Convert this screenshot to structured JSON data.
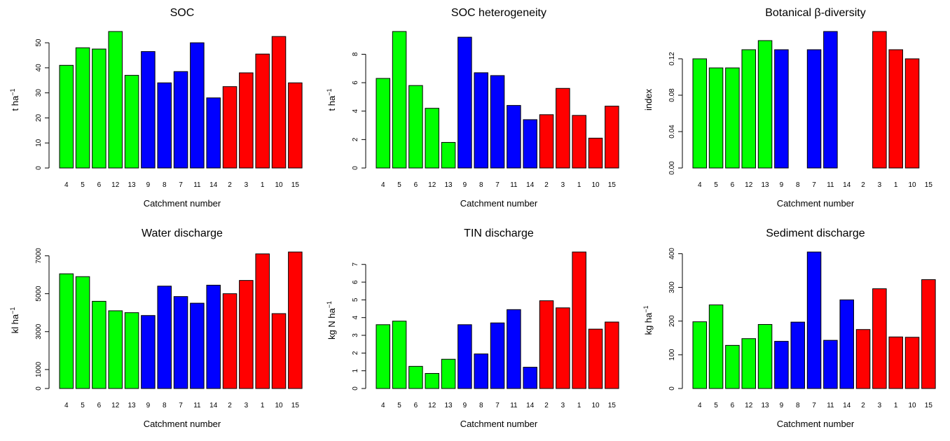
{
  "colors": {
    "group1": "#00ff00",
    "group2": "#0000ff",
    "group3": "#ff0000"
  },
  "chart_data": [
    {
      "type": "bar",
      "title": "SOC",
      "xlabel": "Catchment number",
      "ylabel": "t ha",
      "ylabel_sup": "−1",
      "categories": [
        "4",
        "5",
        "6",
        "12",
        "13",
        "9",
        "8",
        "7",
        "11",
        "14",
        "2",
        "3",
        "1",
        "10",
        "15"
      ],
      "values": [
        41,
        48,
        47.5,
        54.5,
        37,
        46.5,
        34,
        38.5,
        50,
        28,
        32.5,
        38,
        45.5,
        52.5,
        34
      ],
      "bar_groups": [
        "group1",
        "group1",
        "group1",
        "group1",
        "group1",
        "group2",
        "group2",
        "group2",
        "group2",
        "group2",
        "group3",
        "group3",
        "group3",
        "group3",
        "group3"
      ],
      "ylim": [
        0,
        54.5
      ],
      "yticks": [
        0,
        10,
        20,
        30,
        40,
        50
      ],
      "ytick_labels": [
        "0",
        "10",
        "20",
        "30",
        "40",
        "50"
      ]
    },
    {
      "type": "bar",
      "title": "SOC heterogeneity",
      "xlabel": "Catchment number",
      "ylabel": "t ha",
      "ylabel_sup": "−1",
      "categories": [
        "4",
        "5",
        "6",
        "12",
        "13",
        "9",
        "8",
        "7",
        "11",
        "14",
        "2",
        "3",
        "1",
        "10",
        "15"
      ],
      "values": [
        6.3,
        9.6,
        5.8,
        4.2,
        1.8,
        9.2,
        6.7,
        6.5,
        4.4,
        3.4,
        3.75,
        5.6,
        3.7,
        2.1,
        4.35
      ],
      "bar_groups": [
        "group1",
        "group1",
        "group1",
        "group1",
        "group1",
        "group2",
        "group2",
        "group2",
        "group2",
        "group2",
        "group3",
        "group3",
        "group3",
        "group3",
        "group3"
      ],
      "ylim": [
        0,
        9.6
      ],
      "yticks": [
        0,
        2,
        4,
        6,
        8
      ],
      "ytick_labels": [
        "0",
        "2",
        "4",
        "6",
        "8"
      ]
    },
    {
      "type": "bar",
      "title": "Botanical β-diversity",
      "xlabel": "Catchment number",
      "ylabel": "index",
      "ylabel_sup": "",
      "categories": [
        "4",
        "5",
        "6",
        "12",
        "13",
        "9",
        "8",
        "7",
        "11",
        "14",
        "2",
        "3",
        "1",
        "10",
        "15"
      ],
      "values": [
        0.12,
        0.11,
        0.11,
        0.13,
        0.14,
        0.13,
        null,
        0.13,
        0.15,
        null,
        null,
        0.15,
        0.13,
        0.12,
        null
      ],
      "bar_groups": [
        "group1",
        "group1",
        "group1",
        "group1",
        "group1",
        "group2",
        "group2",
        "group2",
        "group2",
        "group2",
        "group3",
        "group3",
        "group3",
        "group3",
        "group3"
      ],
      "ylim": [
        0,
        0.15
      ],
      "yticks": [
        0,
        0.04,
        0.08,
        0.12
      ],
      "ytick_labels": [
        "0.00",
        "0.04",
        "0.08",
        "0.12"
      ]
    },
    {
      "type": "bar",
      "title": "Water discharge",
      "xlabel": "Catchment number",
      "ylabel": "kl ha",
      "ylabel_sup": "−1",
      "categories": [
        "4",
        "5",
        "6",
        "12",
        "13",
        "9",
        "8",
        "7",
        "11",
        "14",
        "2",
        "3",
        "1",
        "10",
        "15"
      ],
      "values": [
        6050,
        5900,
        4600,
        4100,
        4000,
        3850,
        5400,
        4850,
        4500,
        5450,
        5000,
        5700,
        7100,
        3950,
        7200
      ],
      "bar_groups": [
        "group1",
        "group1",
        "group1",
        "group1",
        "group1",
        "group2",
        "group2",
        "group2",
        "group2",
        "group2",
        "group3",
        "group3",
        "group3",
        "group3",
        "group3"
      ],
      "ylim": [
        0,
        7200
      ],
      "yticks": [
        0,
        1000,
        3000,
        5000,
        7000
      ],
      "ytick_labels": [
        "0",
        "1000",
        "3000",
        "5000",
        "7000"
      ]
    },
    {
      "type": "bar",
      "title": "TIN discharge",
      "xlabel": "Catchment number",
      "ylabel": "kg N ha",
      "ylabel_sup": "−1",
      "categories": [
        "4",
        "5",
        "6",
        "12",
        "13",
        "9",
        "8",
        "7",
        "11",
        "14",
        "2",
        "3",
        "1",
        "10",
        "15"
      ],
      "values": [
        3.6,
        3.8,
        1.25,
        0.85,
        1.65,
        3.6,
        1.95,
        3.7,
        4.45,
        1.2,
        4.95,
        4.55,
        7.7,
        3.35,
        3.75
      ],
      "bar_groups": [
        "group1",
        "group1",
        "group1",
        "group1",
        "group1",
        "group2",
        "group2",
        "group2",
        "group2",
        "group2",
        "group3",
        "group3",
        "group3",
        "group3",
        "group3"
      ],
      "ylim": [
        0,
        7.7
      ],
      "yticks": [
        0,
        1,
        2,
        3,
        4,
        5,
        6,
        7
      ],
      "ytick_labels": [
        "0",
        "1",
        "2",
        "3",
        "4",
        "5",
        "6",
        "7"
      ]
    },
    {
      "type": "bar",
      "title": "Sediment discharge",
      "xlabel": "Catchment number",
      "ylabel": "kg ha",
      "ylabel_sup": "−1",
      "categories": [
        "4",
        "5",
        "6",
        "12",
        "13",
        "9",
        "8",
        "7",
        "11",
        "14",
        "2",
        "3",
        "1",
        "10",
        "15"
      ],
      "values": [
        198,
        248,
        128,
        148,
        190,
        140,
        197,
        405,
        143,
        263,
        175,
        296,
        153,
        152,
        323
      ],
      "bar_groups": [
        "group1",
        "group1",
        "group1",
        "group1",
        "group1",
        "group2",
        "group2",
        "group2",
        "group2",
        "group2",
        "group3",
        "group3",
        "group3",
        "group3",
        "group3"
      ],
      "ylim": [
        0,
        405
      ],
      "yticks": [
        0,
        100,
        200,
        300,
        400
      ],
      "ytick_labels": [
        "0",
        "100",
        "200",
        "300",
        "400"
      ]
    }
  ]
}
